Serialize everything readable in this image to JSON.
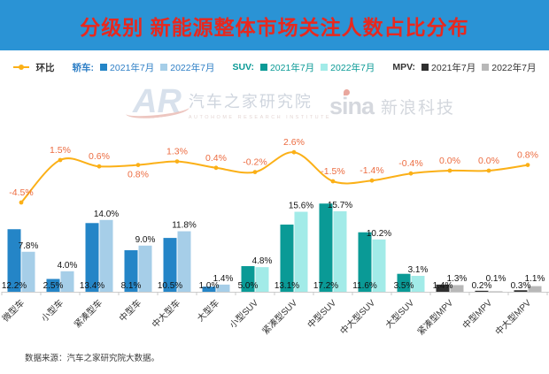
{
  "header": {
    "title": "分级别 新能源整体市场关注人数占比分布",
    "bg_color": "#2a93d5",
    "title_color": "#e8281e"
  },
  "legend": {
    "line": {
      "label": "环比",
      "color": "#fbb017"
    },
    "groups": [
      {
        "name": "轿车:",
        "text_color": "#2e7fc6",
        "items": [
          {
            "label": "2021年7月",
            "color": "#2485c7"
          },
          {
            "label": "2022年7月",
            "color": "#a6cee8"
          }
        ]
      },
      {
        "name": "SUV:",
        "text_color": "#0a9a96",
        "items": [
          {
            "label": "2021年7月",
            "color": "#0a9a96"
          },
          {
            "label": "2022年7月",
            "color": "#a2ebe8"
          }
        ]
      },
      {
        "name": "MPV:",
        "text_color": "#333333",
        "items": [
          {
            "label": "2021年7月",
            "color": "#2f2f2f"
          },
          {
            "label": "2022年7月",
            "color": "#b8b8b8"
          }
        ]
      }
    ]
  },
  "watermarks": {
    "left": {
      "logo": "AR",
      "name": "汽车之家研究院",
      "subtitle": "AUTOHOME RESEARCH INSTITUTE"
    },
    "right": {
      "logo": "sina",
      "name": "新浪科技"
    }
  },
  "chart_data": {
    "type": "grouped-bar-with-line",
    "title": "分级别 新能源整体市场关注人数占比分布",
    "categories": [
      "微型车",
      "小型车",
      "紧凑型车",
      "中型车",
      "中大型车",
      "大型车",
      "小型SUV",
      "紧凑型SUV",
      "中型SUV",
      "中大型SUV",
      "大型SUV",
      "紧凑型MPV",
      "中型MPV",
      "中大型MPV"
    ],
    "groups": [
      {
        "name": "轿车",
        "count": 6,
        "color_2021": "#2485c7",
        "color_2022": "#a6cee8"
      },
      {
        "name": "SUV",
        "count": 5,
        "color_2021": "#0a9a96",
        "color_2022": "#a2ebe8"
      },
      {
        "name": "MPV",
        "count": 3,
        "color_2021": "#2f2f2f",
        "color_2022": "#b8b8b8"
      }
    ],
    "series": [
      {
        "name": "2021年7月",
        "values": [
          12.2,
          2.5,
          13.4,
          8.1,
          10.5,
          1.0,
          5.0,
          13.1,
          17.2,
          11.6,
          3.5,
          1.4,
          0.2,
          0.3
        ]
      },
      {
        "name": "2022年7月",
        "values": [
          7.8,
          4.0,
          14.0,
          9.0,
          11.8,
          1.4,
          4.8,
          15.6,
          15.7,
          10.2,
          3.1,
          1.3,
          0.1,
          1.1
        ]
      }
    ],
    "line": {
      "name": "环比",
      "values": [
        -4.5,
        1.5,
        0.6,
        0.8,
        1.3,
        0.4,
        -0.2,
        2.6,
        -1.5,
        -1.4,
        -0.4,
        0.0,
        0.0,
        0.8
      ],
      "color": "#fbb017",
      "label_color": "#ec6c41",
      "label_below_indices": [
        3
      ]
    },
    "value_suffix": "%",
    "ylim_bars": [
      0,
      18
    ],
    "grid": false,
    "legend_position": "top"
  },
  "footer": {
    "source": "数据来源：汽车之家研究院大数据。"
  }
}
